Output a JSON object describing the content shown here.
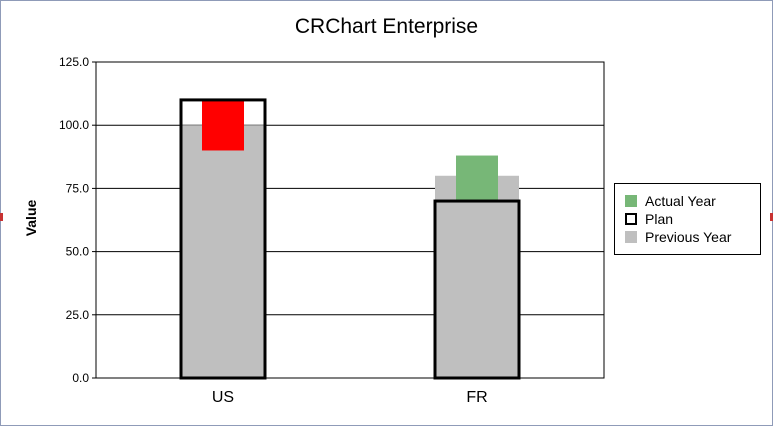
{
  "chart_data": {
    "type": "bar",
    "title": "CRChart Enterprise",
    "xlabel": "",
    "ylabel": "Value",
    "ylim": [
      0,
      125
    ],
    "yticks": [
      0,
      25,
      50,
      75,
      100,
      125
    ],
    "ytick_labels": [
      "0.0",
      "25.0",
      "50.0",
      "75.0",
      "100.0",
      "125.0"
    ],
    "categories": [
      "US",
      "FR"
    ],
    "series": [
      {
        "name": "Actual Year",
        "values": [
          90,
          88
        ],
        "base": [
          110,
          70
        ],
        "colors": [
          "#ff0000",
          "#77b777"
        ]
      },
      {
        "name": "Plan",
        "values": [
          110,
          70
        ],
        "color": "#000000"
      },
      {
        "name": "Previous Year",
        "values": [
          100,
          80
        ],
        "color": "#bfbfbf"
      }
    ],
    "grid": true,
    "legend_position": "right"
  },
  "legend": {
    "items": [
      {
        "label": "Actual Year",
        "color": "#77b777"
      },
      {
        "label": "Plan",
        "color": "#000000"
      },
      {
        "label": "Previous Year",
        "color": "#bfbfbf"
      }
    ]
  }
}
